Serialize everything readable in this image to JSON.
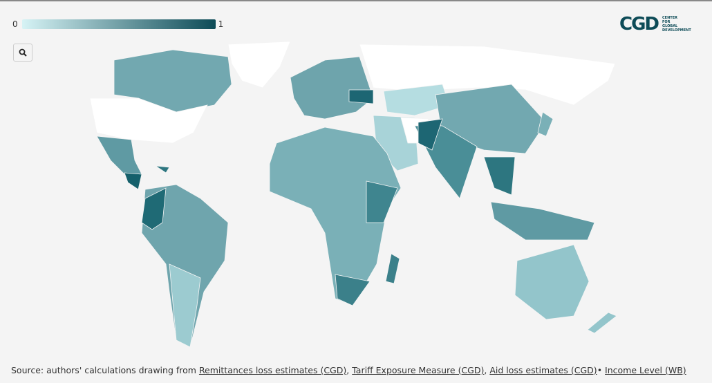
{
  "legend": {
    "min": 0,
    "max": 1,
    "colors": [
      "#d6f3f5",
      "#0d4b57"
    ]
  },
  "logo": {
    "mark": "CGD",
    "lines": [
      "CENTER",
      "FOR",
      "GLOBAL",
      "DEVELOPMENT"
    ]
  },
  "source": {
    "label": "Source: authors' calculations drawing from",
    "links": [
      "Remittances loss estimates (CGD)",
      "Tariff Exposure Measure (CGD)",
      "Aid loss estimates (CGD)",
      "Income Level (WB)"
    ],
    "separators": [
      ",",
      ",",
      "•"
    ]
  }
}
